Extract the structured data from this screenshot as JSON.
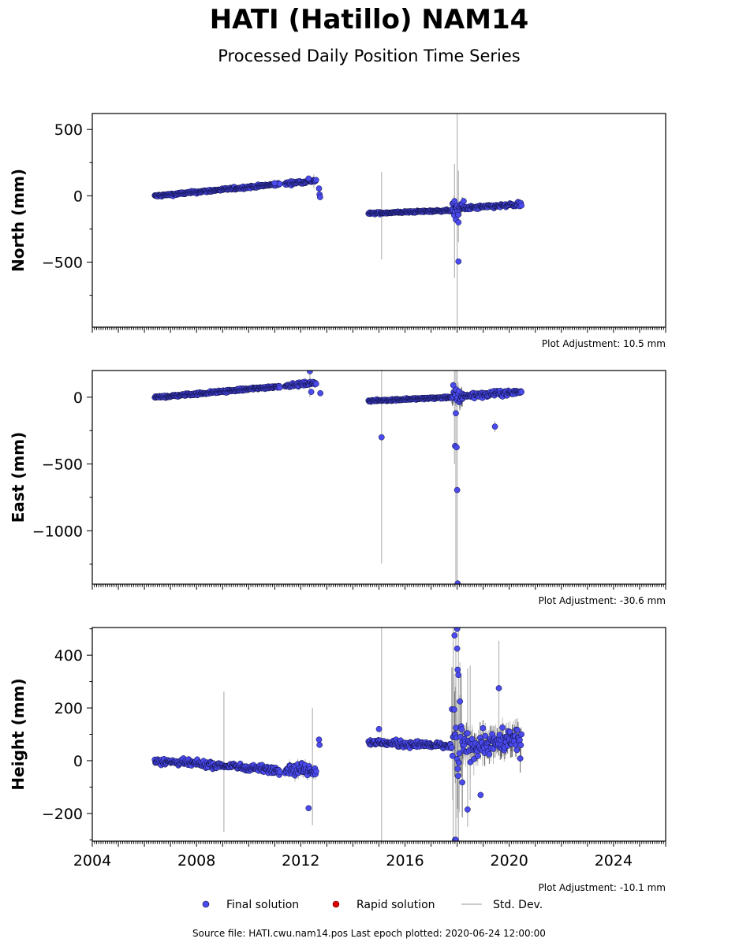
{
  "title": "HATI (Hatillo) NAM14",
  "subtitle": "Processed Daily Position Time Series",
  "footer": "Source file: HATI.cwu.nam14.pos  Last epoch plotted: 2020-06-24 12:00:00",
  "legend": {
    "final": "Final solution",
    "rapid": "Rapid solution",
    "stddev": "Std. Dev.",
    "position": "bottom-center"
  },
  "colors": {
    "final": "#4a4aee",
    "final_edge": "#0a0a33",
    "rapid": "#dd0000",
    "stddev": "#bbbbbb",
    "stddev_dark": "#666666"
  },
  "chart_data": [
    {
      "type": "scatter",
      "ylabel": "North (mm)",
      "adjustment": "Plot Adjustment: 10.5 mm",
      "xlim": [
        2004,
        2026
      ],
      "ylim": [
        -990,
        620
      ],
      "yticks": [
        500,
        0,
        -500
      ],
      "ytick_labels": [
        "500",
        "0",
        "−500"
      ],
      "xticks": [],
      "xtick_labels": [],
      "segments": [
        {
          "start": 2006.4,
          "end": 2011.2,
          "y0": -2,
          "y1": 88,
          "noise": 7,
          "sd": 6
        },
        {
          "start": 2011.4,
          "end": 2012.6,
          "y0": 92,
          "y1": 115,
          "noise": 9,
          "sd": 10
        },
        {
          "start": 2014.6,
          "end": 2017.8,
          "y0": -133,
          "y1": -110,
          "noise": 5,
          "sd": 6
        },
        {
          "start": 2017.8,
          "end": 2018.2,
          "y0": -100,
          "y1": -90,
          "noise": 35,
          "sd": 40
        },
        {
          "start": 2018.2,
          "end": 2020.48,
          "y0": -95,
          "y1": -65,
          "noise": 10,
          "sd": 12
        }
      ],
      "outliers": [
        {
          "x": 2018.05,
          "y": -495
        },
        {
          "x": 2017.95,
          "y": -180
        },
        {
          "x": 2018.05,
          "y": -200
        },
        {
          "x": 2017.9,
          "y": -40
        },
        {
          "x": 2018.25,
          "y": -40
        },
        {
          "x": 2012.7,
          "y": 55
        },
        {
          "x": 2012.72,
          "y": 10
        },
        {
          "x": 2012.74,
          "y": -10
        },
        {
          "x": 2011.0,
          "y": 95
        },
        {
          "x": 2012.3,
          "y": 130
        }
      ],
      "stddev_bars": [
        {
          "x": 2015.1,
          "low": -480,
          "high": 180
        },
        {
          "x": 2018.0,
          "low": -980,
          "high": 620
        },
        {
          "x": 2017.9,
          "low": -620,
          "high": 240
        },
        {
          "x": 2018.05,
          "low": -350,
          "high": 190
        },
        {
          "x": 2012.5,
          "low": 60,
          "high": 160
        }
      ]
    },
    {
      "type": "scatter",
      "ylabel": "East (mm)",
      "adjustment": "Plot Adjustment: -30.6 mm",
      "xlim": [
        2004,
        2026
      ],
      "ylim": [
        -1400,
        200
      ],
      "yticks": [
        0,
        -500,
        -1000
      ],
      "ytick_labels": [
        "0",
        "−500",
        "−1000"
      ],
      "xticks": [],
      "xtick_labels": [],
      "segments": [
        {
          "start": 2006.4,
          "end": 2011.2,
          "y0": -2,
          "y1": 82,
          "noise": 7,
          "sd": 6
        },
        {
          "start": 2011.4,
          "end": 2012.6,
          "y0": 85,
          "y1": 110,
          "noise": 9,
          "sd": 10
        },
        {
          "start": 2014.6,
          "end": 2017.8,
          "y0": -28,
          "y1": 0,
          "noise": 5,
          "sd": 6
        },
        {
          "start": 2017.8,
          "end": 2018.2,
          "y0": -10,
          "y1": 10,
          "noise": 45,
          "sd": 60
        },
        {
          "start": 2018.2,
          "end": 2020.48,
          "y0": 10,
          "y1": 40,
          "noise": 14,
          "sd": 14
        }
      ],
      "outliers": [
        {
          "x": 2015.1,
          "y": -300
        },
        {
          "x": 2017.92,
          "y": -365
        },
        {
          "x": 2017.98,
          "y": -375
        },
        {
          "x": 2018.0,
          "y": -695
        },
        {
          "x": 2018.02,
          "y": -1395
        },
        {
          "x": 2019.45,
          "y": -220
        },
        {
          "x": 2012.35,
          "y": 195
        },
        {
          "x": 2012.4,
          "y": 40
        },
        {
          "x": 2012.75,
          "y": 30
        },
        {
          "x": 2017.95,
          "y": -120
        },
        {
          "x": 2017.85,
          "y": 90
        }
      ],
      "stddev_bars": [
        {
          "x": 2015.1,
          "low": -1245,
          "high": 200
        },
        {
          "x": 2017.95,
          "low": -1400,
          "high": 200
        },
        {
          "x": 2018.0,
          "low": -1400,
          "high": 200
        },
        {
          "x": 2017.9,
          "low": -500,
          "high": 200
        },
        {
          "x": 2012.35,
          "low": 0,
          "high": 200
        },
        {
          "x": 2019.45,
          "low": -260,
          "high": -180
        }
      ]
    },
    {
      "type": "scatter",
      "ylabel": "Height (mm)",
      "adjustment": "Plot Adjustment: -10.1 mm",
      "xlim": [
        2004,
        2026
      ],
      "ylim": [
        -305,
        505
      ],
      "yticks": [
        400,
        200,
        0,
        -200
      ],
      "ytick_labels": [
        "400",
        "200",
        "0",
        "−200"
      ],
      "xticks": [
        2004,
        2008,
        2012,
        2016,
        2020,
        2024
      ],
      "xtick_labels": [
        "2004",
        "2008",
        "2012",
        "2016",
        "2020",
        "2024"
      ],
      "segments": [
        {
          "start": 2006.4,
          "end": 2011.2,
          "y0": 0,
          "y1": -35,
          "noise": 9,
          "sd": 10
        },
        {
          "start": 2011.4,
          "end": 2012.6,
          "y0": -30,
          "y1": -35,
          "noise": 16,
          "sd": 18
        },
        {
          "start": 2014.6,
          "end": 2017.8,
          "y0": 70,
          "y1": 55,
          "noise": 9,
          "sd": 10
        },
        {
          "start": 2017.8,
          "end": 2018.2,
          "y0": 60,
          "y1": 60,
          "noise": 120,
          "sd": 170
        },
        {
          "start": 2018.2,
          "end": 2020.48,
          "y0": 55,
          "y1": 75,
          "noise": 35,
          "sd": 45
        }
      ],
      "outliers": [
        {
          "x": 2012.3,
          "y": -180
        },
        {
          "x": 2012.7,
          "y": 80
        },
        {
          "x": 2012.72,
          "y": 60
        },
        {
          "x": 2015.0,
          "y": 120
        },
        {
          "x": 2017.9,
          "y": 475
        },
        {
          "x": 2018.0,
          "y": 500
        },
        {
          "x": 2018.0,
          "y": 425
        },
        {
          "x": 2018.02,
          "y": 345
        },
        {
          "x": 2018.05,
          "y": 325
        },
        {
          "x": 2018.4,
          "y": -185
        },
        {
          "x": 2018.9,
          "y": -130
        },
        {
          "x": 2019.6,
          "y": 275
        },
        {
          "x": 2017.92,
          "y": -300
        },
        {
          "x": 2017.95,
          "y": -300
        }
      ],
      "stddev_bars": [
        {
          "x": 2009.05,
          "low": -270,
          "high": 262
        },
        {
          "x": 2012.45,
          "low": -245,
          "high": 200
        },
        {
          "x": 2015.1,
          "low": -305,
          "high": 505
        },
        {
          "x": 2017.85,
          "low": -305,
          "high": 505
        },
        {
          "x": 2017.95,
          "low": -305,
          "high": 505
        },
        {
          "x": 2018.05,
          "low": -305,
          "high": 505
        },
        {
          "x": 2018.4,
          "low": -250,
          "high": 350
        },
        {
          "x": 2018.5,
          "low": -150,
          "high": 360
        },
        {
          "x": 2019.6,
          "low": 50,
          "high": 455
        }
      ]
    }
  ]
}
